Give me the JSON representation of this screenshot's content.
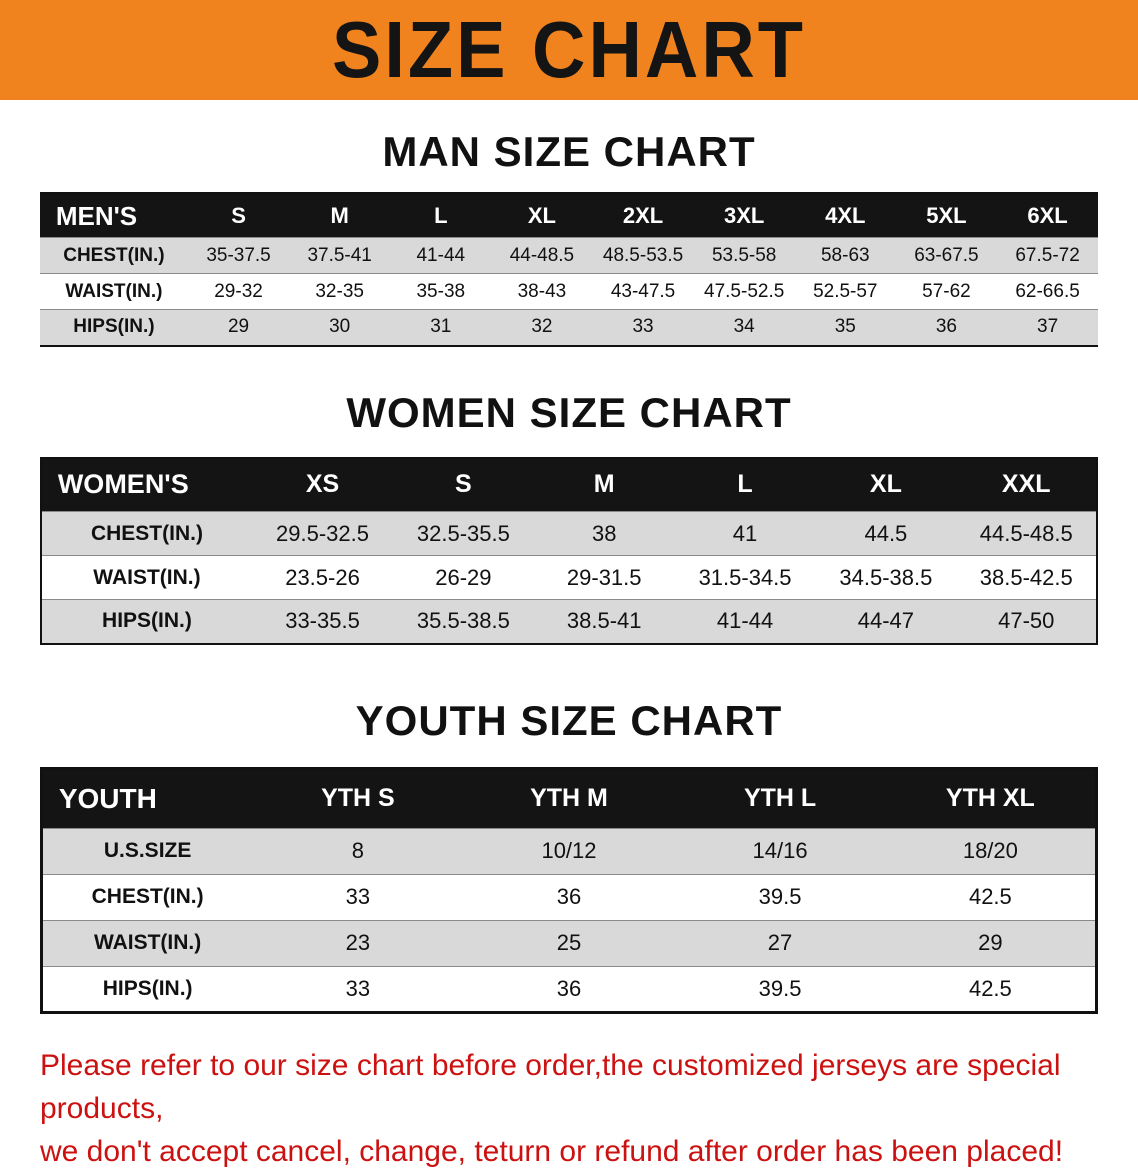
{
  "colors": {
    "banner_bg": "#f0831e",
    "table_header_bg": "#141414",
    "table_header_text": "#ffffff",
    "row_alt_bg": "#d9d9d9",
    "row_bg": "#ffffff",
    "footer_text": "#cc1111"
  },
  "banner": {
    "title": "SIZE CHART"
  },
  "sections": [
    {
      "heading": "MAN SIZE CHART",
      "corner": "MEN'S",
      "columns": [
        "S",
        "M",
        "L",
        "XL",
        "2XL",
        "3XL",
        "4XL",
        "5XL",
        "6XL"
      ],
      "rows": [
        {
          "label": "CHEST(IN.)",
          "values": [
            "35-37.5",
            "37.5-41",
            "41-44",
            "44-48.5",
            "48.5-53.5",
            "53.5-58",
            "58-63",
            "63-67.5",
            "67.5-72"
          ]
        },
        {
          "label": "WAIST(IN.)",
          "values": [
            "29-32",
            "32-35",
            "35-38",
            "38-43",
            "43-47.5",
            "47.5-52.5",
            "52.5-57",
            "57-62",
            "62-66.5"
          ]
        },
        {
          "label": "HIPS(IN.)",
          "values": [
            "29",
            "30",
            "31",
            "32",
            "33",
            "34",
            "35",
            "36",
            "37"
          ]
        }
      ]
    },
    {
      "heading": "WOMEN SIZE CHART",
      "corner": "WOMEN'S",
      "columns": [
        "XS",
        "S",
        "M",
        "L",
        "XL",
        "XXL"
      ],
      "rows": [
        {
          "label": "CHEST(IN.)",
          "values": [
            "29.5-32.5",
            "32.5-35.5",
            "38",
            "41",
            "44.5",
            "44.5-48.5"
          ]
        },
        {
          "label": "WAIST(IN.)",
          "values": [
            "23.5-26",
            "26-29",
            "29-31.5",
            "31.5-34.5",
            "34.5-38.5",
            "38.5-42.5"
          ]
        },
        {
          "label": "HIPS(IN.)",
          "values": [
            "33-35.5",
            "35.5-38.5",
            "38.5-41",
            "41-44",
            "44-47",
            "47-50"
          ]
        }
      ]
    },
    {
      "heading": "YOUTH SIZE CHART",
      "corner": "YOUTH",
      "columns": [
        "YTH S",
        "YTH M",
        "YTH L",
        "YTH XL"
      ],
      "rows": [
        {
          "label": "U.S.SIZE",
          "values": [
            "8",
            "10/12",
            "14/16",
            "18/20"
          ]
        },
        {
          "label": "CHEST(IN.)",
          "values": [
            "33",
            "36",
            "39.5",
            "42.5"
          ]
        },
        {
          "label": "WAIST(IN.)",
          "values": [
            "23",
            "25",
            "27",
            "29"
          ]
        },
        {
          "label": "HIPS(IN.)",
          "values": [
            "33",
            "36",
            "39.5",
            "42.5"
          ]
        }
      ]
    }
  ],
  "footer": {
    "line1": "Please refer to our size chart before order,the customized jerseys are special products,",
    "line2": "we don't accept cancel, change, teturn or refund after order has been placed!"
  }
}
